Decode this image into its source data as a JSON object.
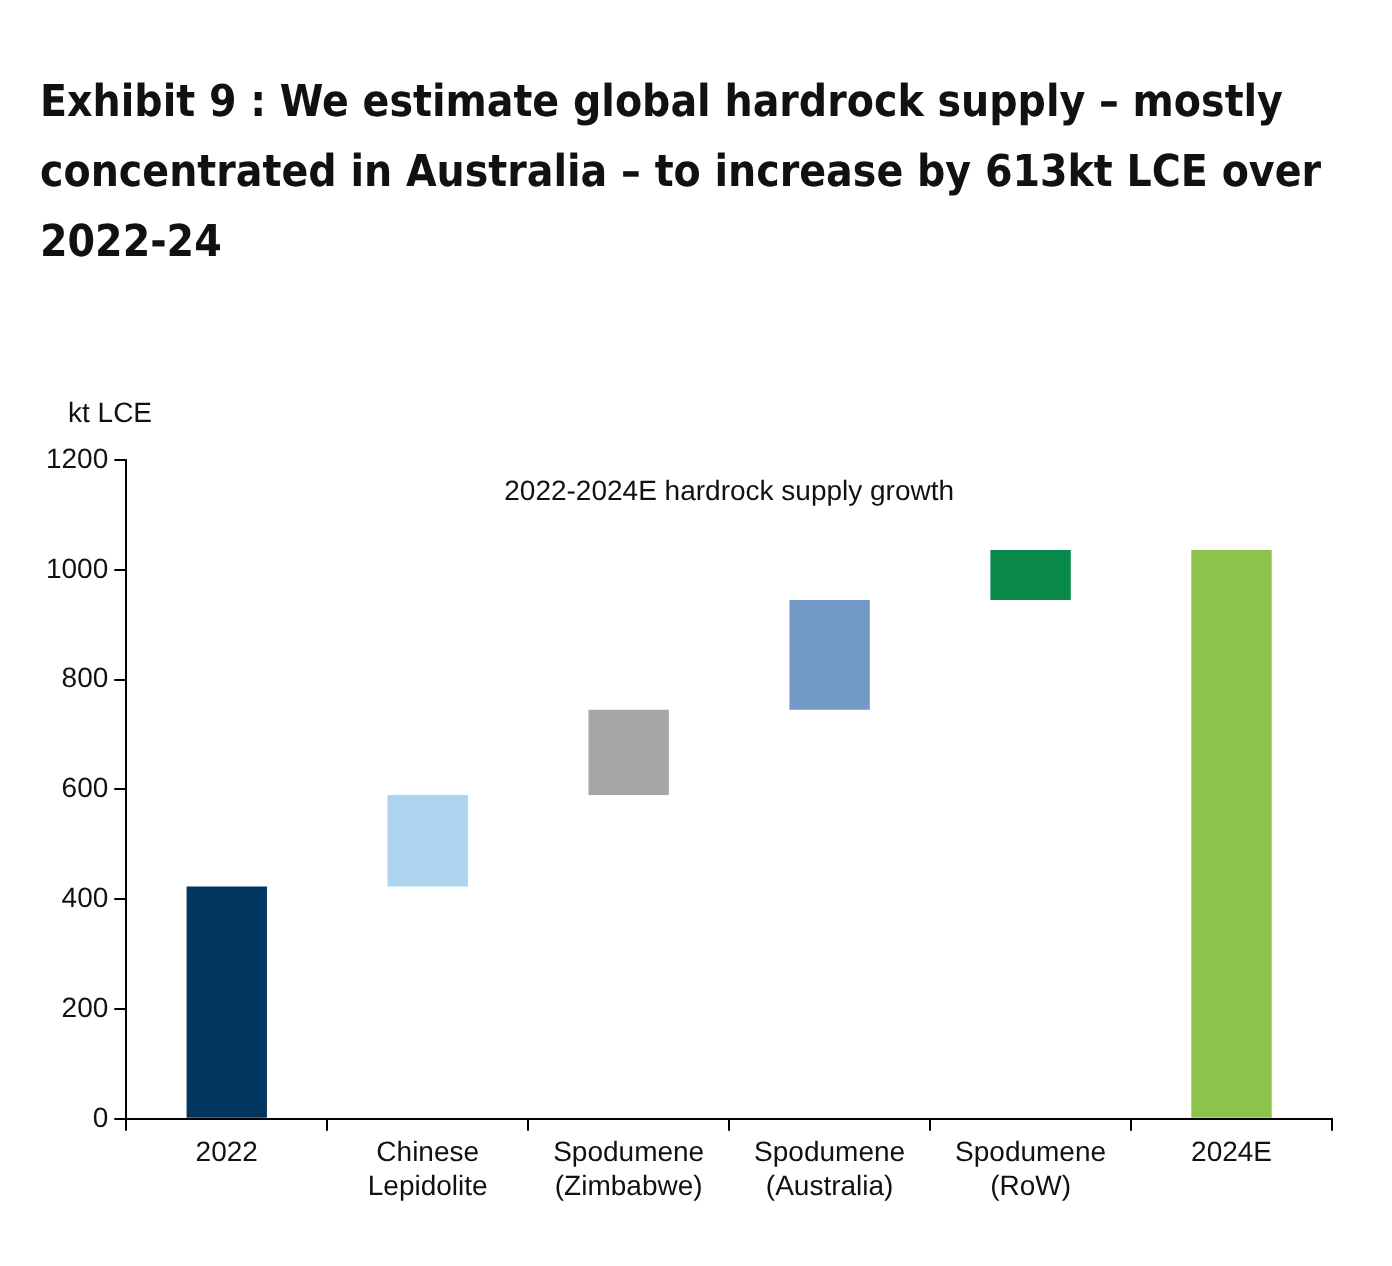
{
  "chart_data": {
    "type": "bar",
    "title": "Exhibit 9 : We estimate global hardrock supply – mostly concentrated in Australia – to increase by 613kt LCE over 2022-24",
    "ylabel": "kt LCE",
    "categories": [
      "2022",
      "Chinese Lepidolite",
      "Spodumene (Zimbabwe)",
      "Spodumene (Australia)",
      "Spodumene (RoW)",
      "2024E"
    ],
    "values": [
      423,
      167,
      155,
      200,
      91,
      1036
    ],
    "base": [
      0,
      423,
      590,
      745,
      945,
      0
    ],
    "colors": [
      "#003660",
      "#acd3ef",
      "#a6a6a6",
      "#7399c6",
      "#0a8a4a",
      "#8cc34a"
    ],
    "ylim": [
      0,
      1200
    ],
    "yticks": [
      0,
      200,
      400,
      600,
      800,
      1000,
      1200
    ],
    "annotations": [
      "2022-2024E hardrock supply growth"
    ],
    "legend": false
  }
}
